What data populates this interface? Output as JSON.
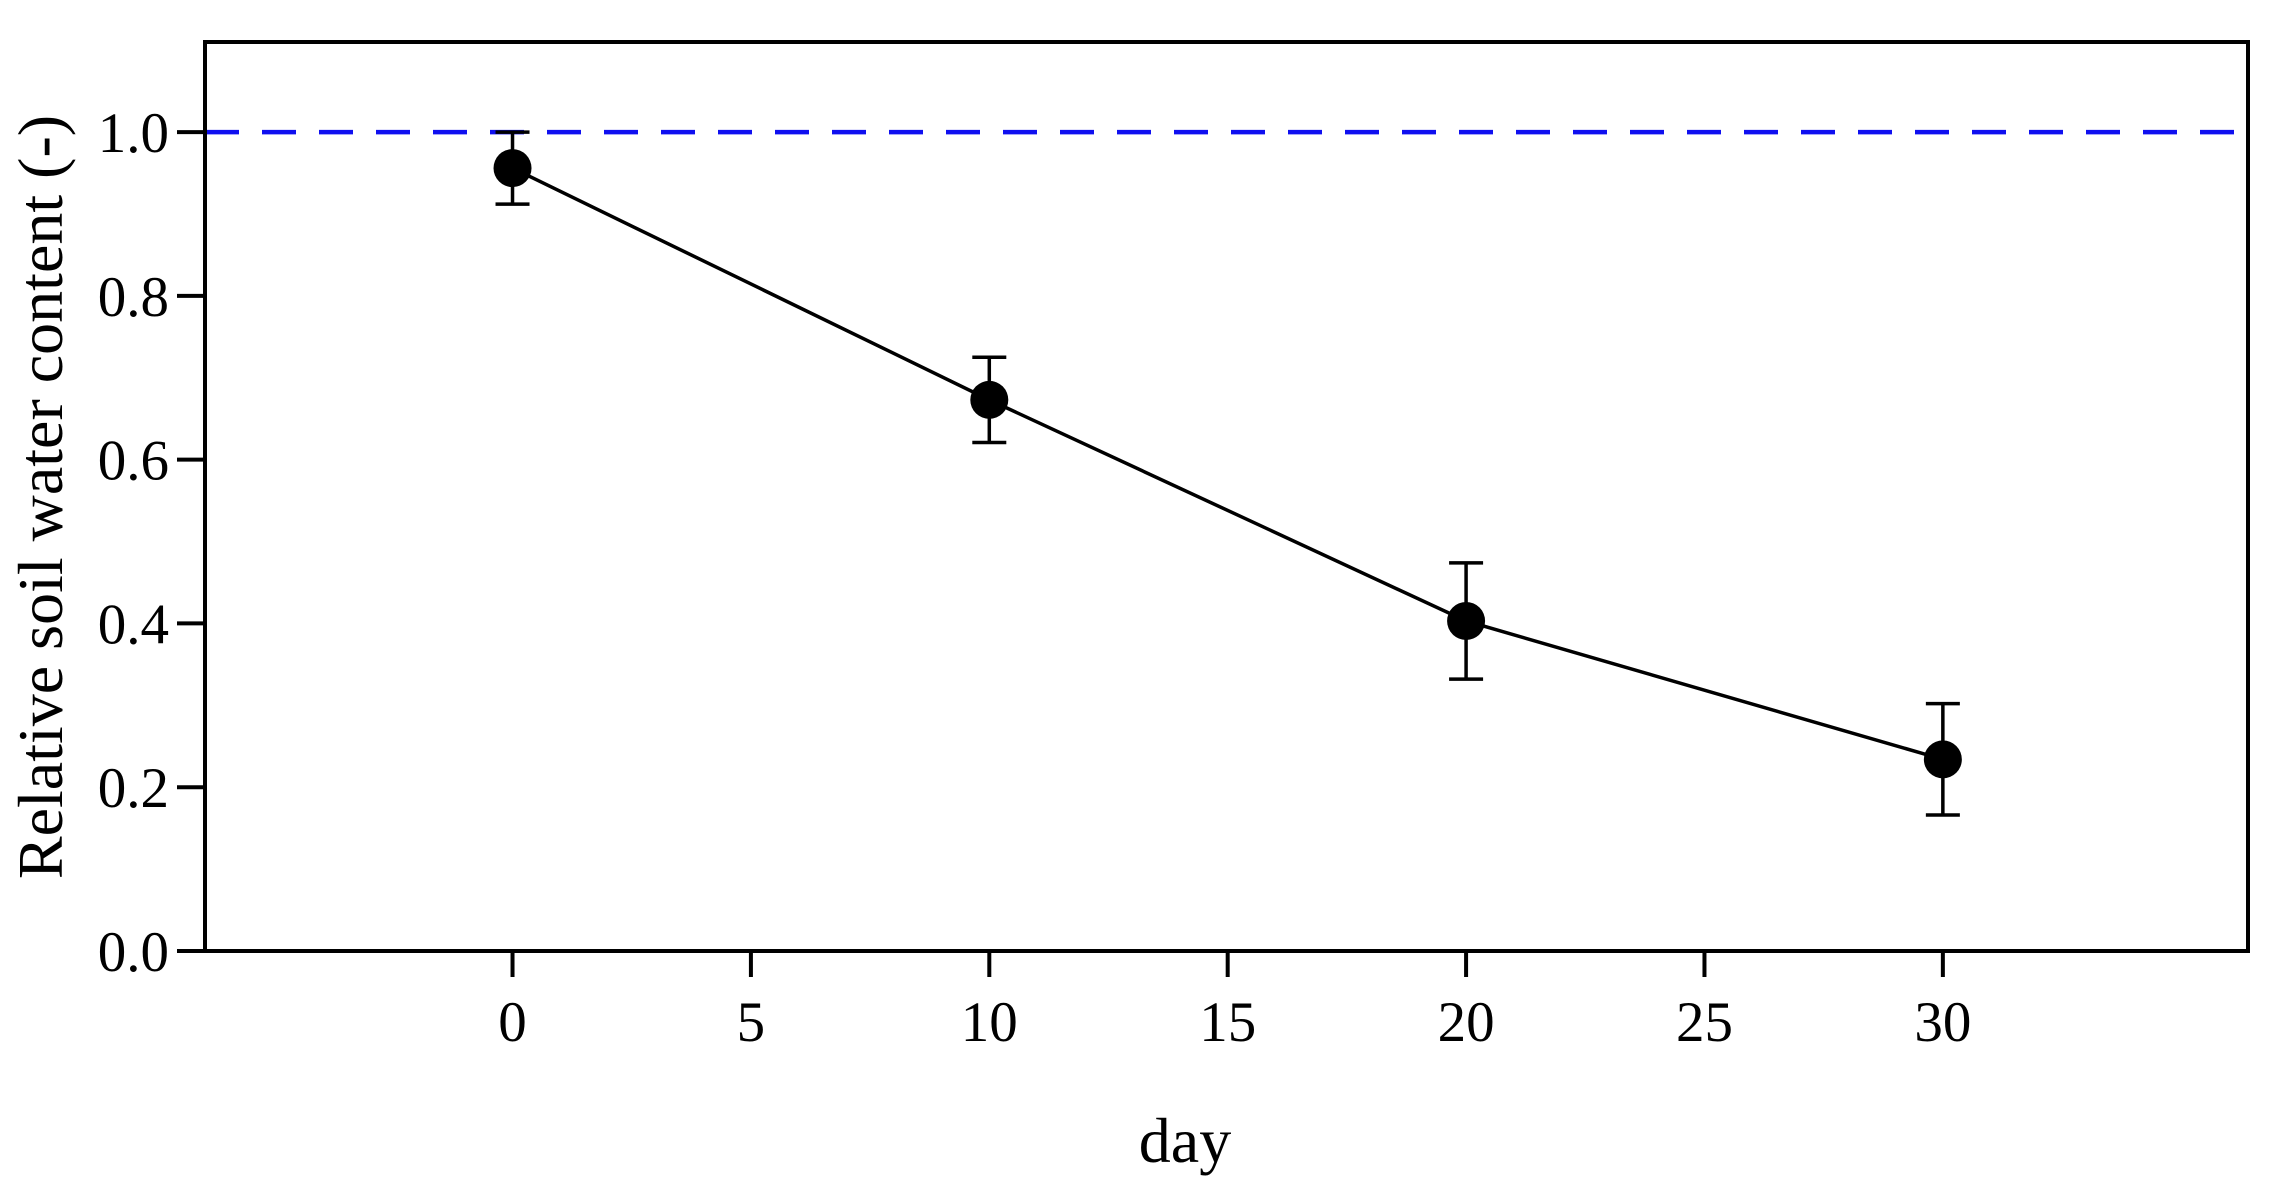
{
  "chart_data": {
    "type": "line",
    "x": [
      0,
      10,
      20,
      30
    ],
    "y": [
      0.956,
      0.673,
      0.403,
      0.234
    ],
    "yerr": [
      0.044,
      0.052,
      0.071,
      0.068
    ],
    "xlabel": "day",
    "ylabel": "Relative soil water content (-)",
    "xticks": [
      0,
      5,
      10,
      15,
      20,
      25,
      30
    ],
    "yticks": [
      0.0,
      0.2,
      0.4,
      0.6,
      0.8,
      1.0
    ],
    "xlim": [
      -6.45,
      36.4
    ],
    "ylim": [
      0,
      1.11
    ],
    "grid": false,
    "legend": "none",
    "reference_line": {
      "y": 1.0,
      "style": "dashed",
      "color": "#0f0ff0"
    },
    "series_color": "#000000",
    "marker": "circle",
    "background": "#ffffff"
  }
}
